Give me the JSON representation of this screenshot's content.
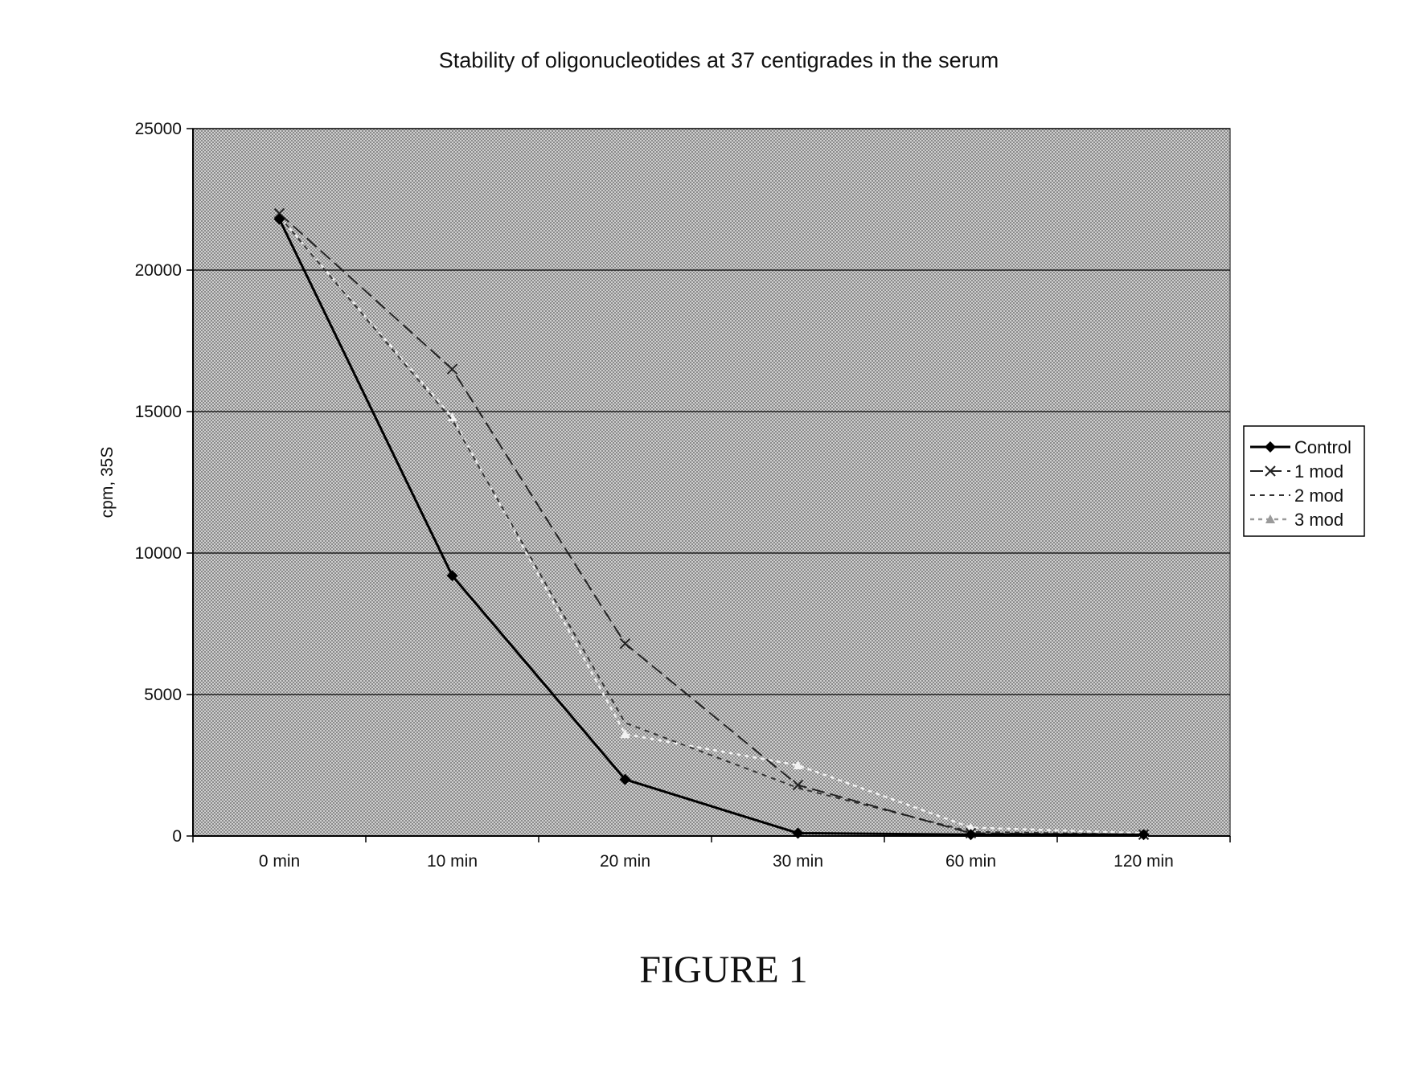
{
  "figure": {
    "caption": "FIGURE 1"
  },
  "chart_data": {
    "type": "line",
    "title": "Stability of oligonucleotides at 37 centigrades in the serum",
    "xlabel": "",
    "ylabel": "cpm, 35S",
    "ylim": [
      0,
      25000
    ],
    "yticks": [
      0,
      5000,
      10000,
      15000,
      20000,
      25000
    ],
    "grid": "horizontal",
    "legend_position": "right",
    "categories": [
      "0 min",
      "10 min",
      "20 min",
      "30 min",
      "60 min",
      "120 min"
    ],
    "series": [
      {
        "name": "Control",
        "values": [
          21800,
          9200,
          2000,
          100,
          50,
          50
        ],
        "color": "#000000",
        "dash": "",
        "width": 3,
        "marker": "diamond"
      },
      {
        "name": "1 mod",
        "values": [
          22000,
          16500,
          6800,
          1800,
          100,
          50
        ],
        "color": "#222222",
        "dash": "16 7",
        "width": 2,
        "marker": "cross"
      },
      {
        "name": "2 mod",
        "values": [
          21900,
          14700,
          4000,
          1700,
          150,
          50
        ],
        "color": "#333333",
        "dash": "6 6",
        "width": 2,
        "marker": "none"
      },
      {
        "name": "3 mod",
        "values": [
          21900,
          14800,
          3600,
          2500,
          300,
          100
        ],
        "color": "#f2f2f2",
        "dash": "5 5",
        "width": 2.5,
        "marker": "triangle"
      }
    ]
  }
}
